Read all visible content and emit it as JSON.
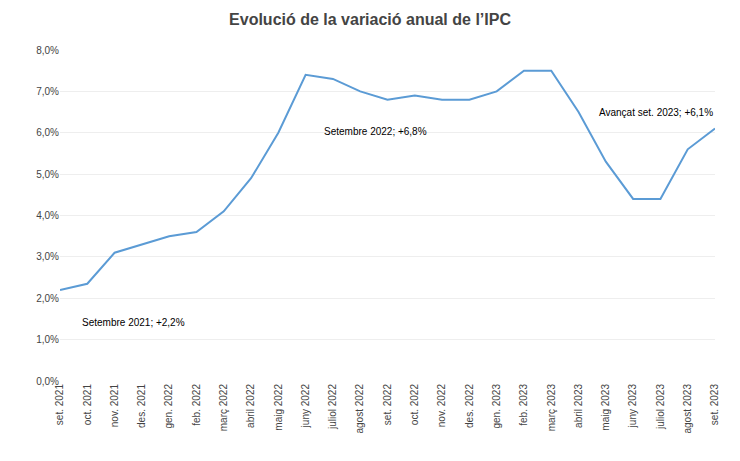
{
  "chart_data": {
    "type": "line",
    "title": "Evolució de la variació anual de l’IPC",
    "categories": [
      "set. 2021",
      "oct. 2021",
      "nov. 2021",
      "des. 2021",
      "gen. 2022",
      "feb. 2022",
      "març 2022",
      "abril 2022",
      "maig 2022",
      "juny 2022",
      "juliol 2022",
      "agost 2022",
      "set. 2022",
      "oct. 2022",
      "nov. 2022",
      "des. 2022",
      "gen. 2023",
      "feb. 2023",
      "març 2023",
      "abril 2023",
      "maig 2023",
      "juny 2023",
      "juliol 2023",
      "agost 2023",
      "set. 2023"
    ],
    "values": [
      2.2,
      2.35,
      3.1,
      3.3,
      3.5,
      3.6,
      4.1,
      4.9,
      6.0,
      7.4,
      7.3,
      7.0,
      6.8,
      6.9,
      6.8,
      6.8,
      7.0,
      7.5,
      7.5,
      6.5,
      5.3,
      4.4,
      4.4,
      5.6,
      6.1
    ],
    "color": "#5B9BD5",
    "ylim": [
      0.0,
      8.0
    ],
    "yticks": [
      {
        "value": 0,
        "label": "0,0%"
      },
      {
        "value": 1,
        "label": "1,0%"
      },
      {
        "value": 2,
        "label": "2,0%"
      },
      {
        "value": 3,
        "label": "3,0%"
      },
      {
        "value": 4,
        "label": "4,0%"
      },
      {
        "value": 5,
        "label": "5,0%"
      },
      {
        "value": 6,
        "label": "6,0%"
      },
      {
        "value": 7,
        "label": "7,0%"
      },
      {
        "value": 8,
        "label": "8,0%"
      }
    ],
    "grid": true,
    "annotations": [
      "Setembre 2021; +2,2%",
      "Setembre 2022; +6,8%",
      "Avançat set. 2023; +6,1%"
    ]
  }
}
